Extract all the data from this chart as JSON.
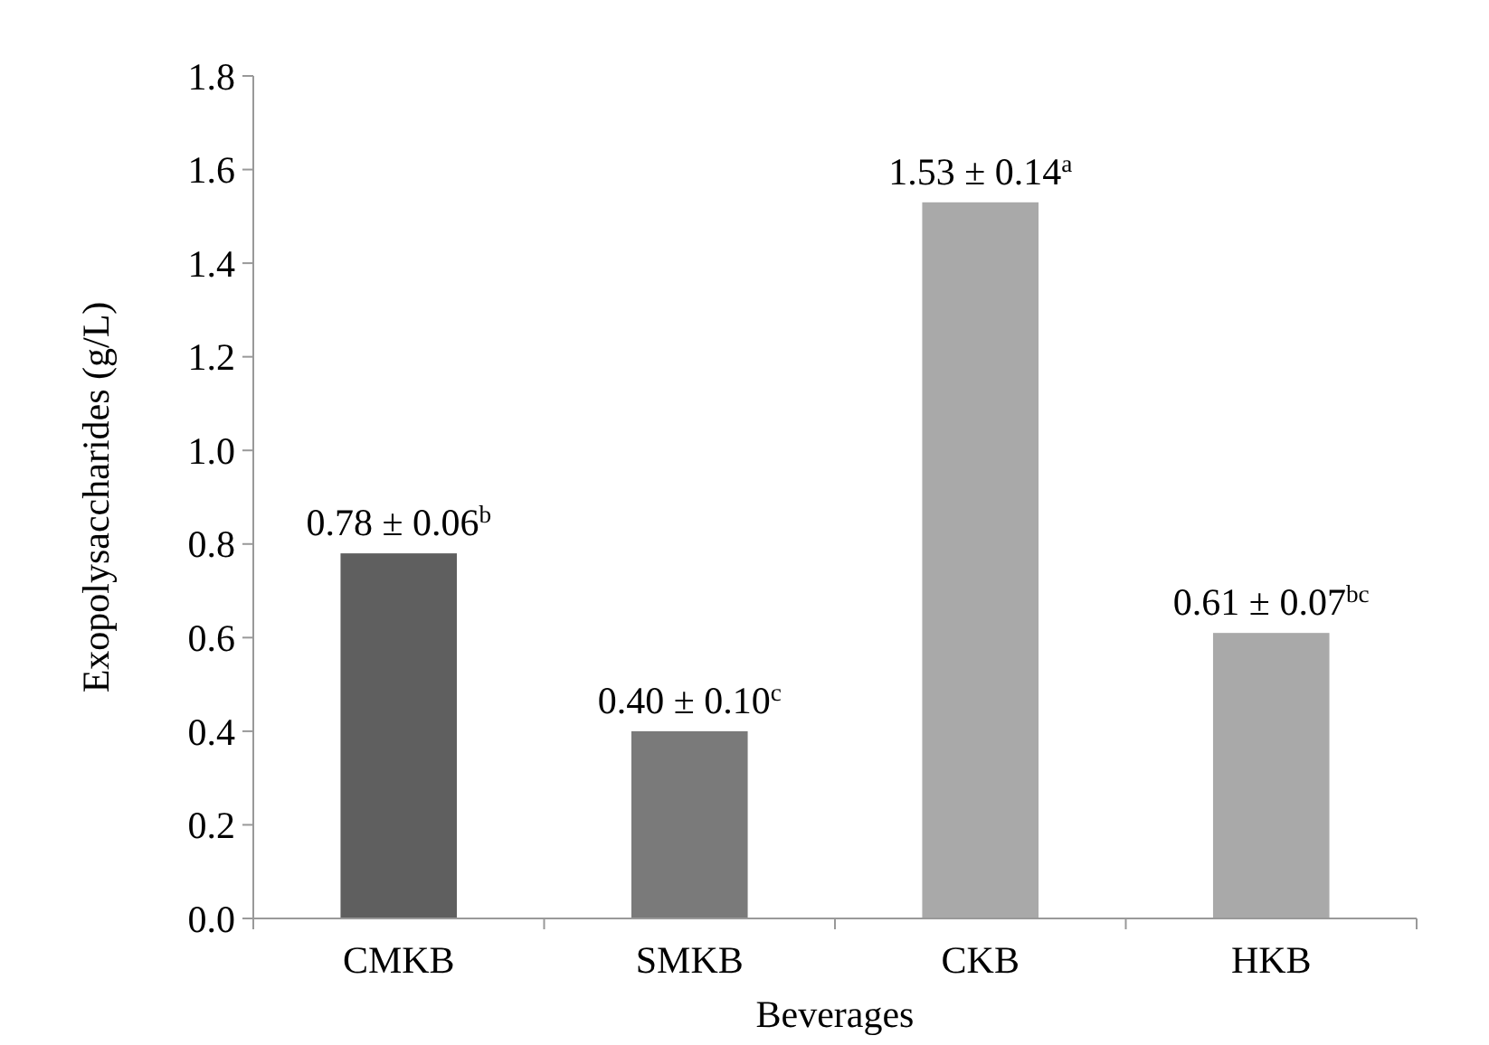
{
  "chart_data": {
    "type": "bar",
    "xlabel": "Beverages",
    "ylabel": "Exopolysaccharides (g/L)",
    "categories": [
      "CMKB",
      "SMKB",
      "CKB",
      "HKB"
    ],
    "values": [
      0.78,
      0.4,
      1.53,
      0.61
    ],
    "colors": [
      "#5f5f5f",
      "#7a7a7a",
      "#a9a9a9",
      "#a9a9a9"
    ],
    "value_labels": [
      "0.78 ± 0.06$^{b}$",
      "0.40 ± 0.10$^{c}$",
      "1.53 ± 0.14$^{a}$",
      "0.61 ± 0.07$^{bc}$"
    ],
    "ylim": [
      0,
      1.8
    ],
    "yticks": [
      {
        "value": 0,
        "label": "0.0"
      },
      0.2,
      0.4,
      0.6,
      0.8,
      {
        "value": 1,
        "label": "1.0"
      },
      1.2,
      1.4,
      1.6,
      1.8
    ],
    "grid": false
  }
}
